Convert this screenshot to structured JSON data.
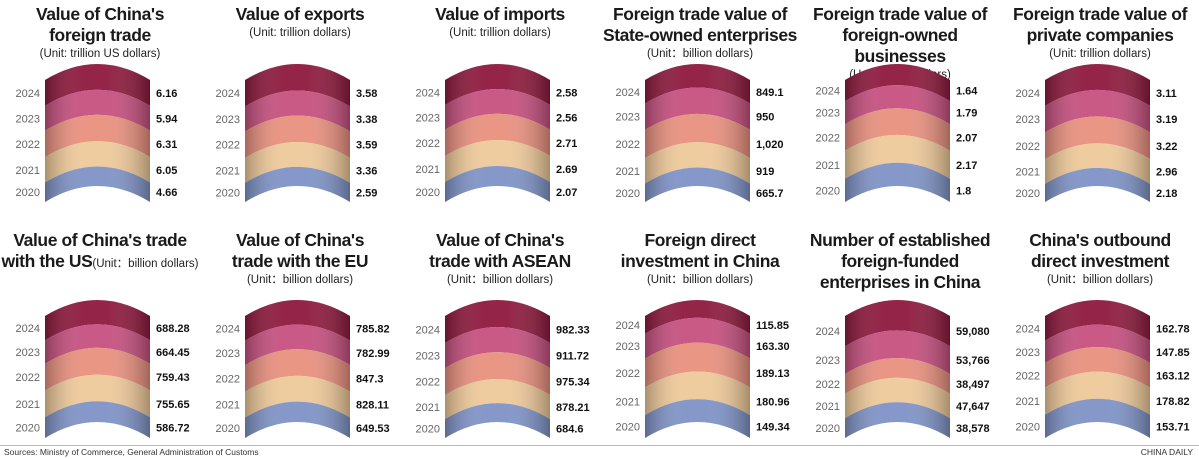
{
  "colors": {
    "2024": "#8e1a3e",
    "2023": "#c6507f",
    "2022": "#e8907e",
    "2021": "#eec99a",
    "2020": "#7f93c6"
  },
  "footer": {
    "source": "Sources: Ministry of Commerce, General Administration of Customs",
    "credit": "CHINA DAILY"
  },
  "chart_data": [
    {
      "type": "bar",
      "title": [
        "Value of China's",
        "foreign trade"
      ],
      "unit": "(Unit: trillion US dollars)",
      "categories": [
        "2024",
        "2023",
        "2022",
        "2021",
        "2020"
      ],
      "values": [
        6.16,
        5.94,
        6.31,
        6.05,
        4.66
      ],
      "labels": [
        "6.16",
        "5.94",
        "6.31",
        "6.05",
        "4.66"
      ]
    },
    {
      "type": "bar",
      "title": [
        "Value of exports"
      ],
      "unit": "(Unit: trillion dollars)",
      "categories": [
        "2024",
        "2023",
        "2022",
        "2021",
        "2020"
      ],
      "values": [
        3.58,
        3.38,
        3.59,
        3.36,
        2.59
      ],
      "labels": [
        "3.58",
        "3.38",
        "3.59",
        "3.36",
        "2.59"
      ]
    },
    {
      "type": "bar",
      "title": [
        "Value of imports"
      ],
      "unit": "(Unit: trillion dollars)",
      "categories": [
        "2024",
        "2023",
        "2022",
        "2021",
        "2020"
      ],
      "values": [
        2.58,
        2.56,
        2.71,
        2.69,
        2.07
      ],
      "labels": [
        "2.58",
        "2.56",
        "2.71",
        "2.69",
        "2.07"
      ]
    },
    {
      "type": "bar",
      "title": [
        "Foreign trade value of",
        "State-owned enterprises"
      ],
      "unit": "(Unit：billion dollars)",
      "categories": [
        "2024",
        "2023",
        "2022",
        "2021",
        "2020"
      ],
      "values": [
        849.1,
        950,
        1020,
        919,
        665.7
      ],
      "labels": [
        "849.1",
        "950",
        "1,020",
        "919",
        "665.7"
      ]
    },
    {
      "type": "bar",
      "title": [
        "Foreign trade value of",
        "foreign-owned businesses"
      ],
      "unit": "(Unit: trillion dollars)",
      "categories": [
        "2024",
        "2023",
        "2022",
        "2021",
        "2020"
      ],
      "values": [
        1.64,
        1.79,
        2.07,
        2.17,
        1.8
      ],
      "labels": [
        "1.64",
        "1.79",
        "2.07",
        "2.17",
        "1.8"
      ]
    },
    {
      "type": "bar",
      "title": [
        "Foreign trade value of",
        "private companies"
      ],
      "unit": "(Unit: trillion dollars)",
      "categories": [
        "2024",
        "2023",
        "2022",
        "2021",
        "2020"
      ],
      "values": [
        3.11,
        3.19,
        3.22,
        2.96,
        2.18
      ],
      "labels": [
        "3.11",
        "3.19",
        "3.22",
        "2.96",
        "2.18"
      ]
    },
    {
      "type": "bar",
      "title": [
        "Value of China's trade",
        "with the US"
      ],
      "unit": "(Unit：billion dollars)",
      "categories": [
        "2024",
        "2023",
        "2022",
        "2021",
        "2020"
      ],
      "values": [
        688.28,
        664.45,
        759.43,
        755.65,
        586.72
      ],
      "labels": [
        "688.28",
        "664.45",
        "759.43",
        "755.65",
        "586.72"
      ]
    },
    {
      "type": "bar",
      "title": [
        "Value of China's",
        "trade with the EU"
      ],
      "unit": "(Unit：billion dollars)",
      "categories": [
        "2024",
        "2023",
        "2022",
        "2021",
        "2020"
      ],
      "values": [
        785.82,
        782.99,
        847.3,
        828.11,
        649.53
      ],
      "labels": [
        "785.82",
        "782.99",
        "847.3",
        "828.11",
        "649.53"
      ]
    },
    {
      "type": "bar",
      "title": [
        "Value of China's",
        "trade with ASEAN"
      ],
      "unit": "(Unit：billion dollars)",
      "categories": [
        "2024",
        "2023",
        "2022",
        "2021",
        "2020"
      ],
      "values": [
        982.33,
        911.72,
        975.34,
        878.21,
        684.6
      ],
      "labels": [
        "982.33",
        "911.72",
        "975.34",
        "878.21",
        "684.6"
      ]
    },
    {
      "type": "bar",
      "title": [
        "Foreign direct",
        "investment in China"
      ],
      "unit": "(Unit：billion dollars)",
      "categories": [
        "2024",
        "2023",
        "2022",
        "2021",
        "2020"
      ],
      "values": [
        115.85,
        163.3,
        189.13,
        180.96,
        149.34
      ],
      "labels": [
        "115.85",
        "163.30",
        "189.13",
        "180.96",
        "149.34"
      ]
    },
    {
      "type": "bar",
      "title": [
        "Number of established",
        "foreign-funded",
        "enterprises in China"
      ],
      "unit": "",
      "categories": [
        "2024",
        "2023",
        "2022",
        "2021",
        "2020"
      ],
      "values": [
        59080,
        53766,
        38497,
        47647,
        38578
      ],
      "labels": [
        "59,080",
        "53,766",
        "38,497",
        "47,647",
        "38,578"
      ]
    },
    {
      "type": "bar",
      "title": [
        "China's outbound",
        "direct investment"
      ],
      "unit": "(Unit：billion dollars)",
      "categories": [
        "2024",
        "2023",
        "2022",
        "2021",
        "2020"
      ],
      "values": [
        162.78,
        147.85,
        163.12,
        178.82,
        153.71
      ],
      "labels": [
        "162.78",
        "147.85",
        "163.12",
        "178.82",
        "153.71"
      ]
    }
  ]
}
